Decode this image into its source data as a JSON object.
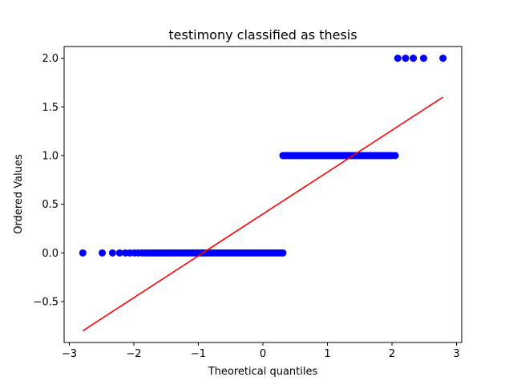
{
  "chart_data": {
    "type": "scatter",
    "title": "testimony classified as thesis",
    "xlabel": "Theoretical quantiles",
    "ylabel": "Ordered Values",
    "xlim": [
      -3.08,
      3.08
    ],
    "ylim": [
      -0.92,
      2.12
    ],
    "xticks": [
      -3,
      -2,
      -1,
      0,
      1,
      2,
      3
    ],
    "xtick_labels": [
      "−3",
      "−2",
      "−1",
      "0",
      "1",
      "2",
      "3"
    ],
    "yticks": [
      -0.5,
      0.0,
      0.5,
      1.0,
      1.5,
      2.0
    ],
    "ytick_labels": [
      "−0.5",
      "0.0",
      "0.5",
      "1.0",
      "1.5",
      "2.0"
    ],
    "grid": false,
    "colors": {
      "points": "#0000ff",
      "fit_line": "#ff0000"
    },
    "series": [
      {
        "kind": "points",
        "groups": [
          {
            "y": 0.0,
            "sparse_x": [
              -2.79,
              -2.49,
              -2.33,
              -2.22,
              -2.13,
              -2.06,
              -1.99,
              -1.93,
              -1.87,
              -1.82
            ],
            "dense_x_range": [
              -1.78,
              0.31
            ]
          },
          {
            "y": 1.0,
            "dense_x_range": [
              0.31,
              2.0
            ],
            "sparse_x": [
              2.05
            ]
          },
          {
            "y": 2.0,
            "sparse_x": [
              2.09,
              2.21,
              2.33,
              2.49,
              2.79
            ]
          }
        ]
      },
      {
        "kind": "fit_line",
        "x": [
          -2.79,
          2.79
        ],
        "y": [
          -0.8,
          1.6
        ]
      }
    ]
  }
}
